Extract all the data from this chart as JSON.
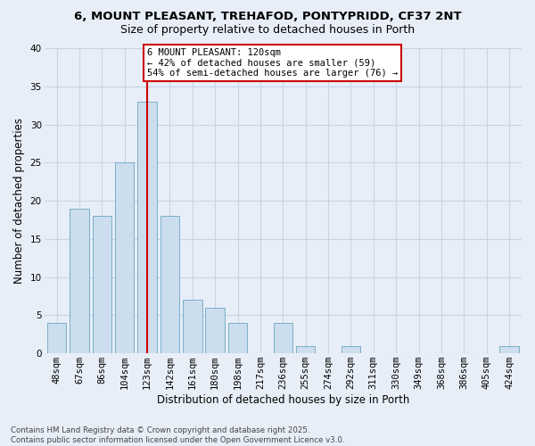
{
  "title1": "6, MOUNT PLEASANT, TREHAFOD, PONTYPRIDD, CF37 2NT",
  "title2": "Size of property relative to detached houses in Porth",
  "xlabel": "Distribution of detached houses by size in Porth",
  "ylabel": "Number of detached properties",
  "categories": [
    "48sqm",
    "67sqm",
    "86sqm",
    "104sqm",
    "123sqm",
    "142sqm",
    "161sqm",
    "180sqm",
    "198sqm",
    "217sqm",
    "236sqm",
    "255sqm",
    "274sqm",
    "292sqm",
    "311sqm",
    "330sqm",
    "349sqm",
    "368sqm",
    "386sqm",
    "405sqm",
    "424sqm"
  ],
  "values": [
    4,
    19,
    18,
    25,
    33,
    18,
    7,
    6,
    4,
    0,
    4,
    1,
    0,
    1,
    0,
    0,
    0,
    0,
    0,
    0,
    1
  ],
  "bar_color": "#ccdded",
  "bar_edge_color": "#7aafc8",
  "grid_color": "#c8d4e4",
  "background_color": "#e8eef8",
  "vline_color": "#cc0000",
  "vline_x_index": 4.0,
  "annotation_text": "6 MOUNT PLEASANT: 120sqm\n← 42% of detached houses are smaller (59)\n54% of semi-detached houses are larger (76) →",
  "annotation_box_color": "#ffffff",
  "annotation_box_edge": "#cc0000",
  "footer": "Contains HM Land Registry data © Crown copyright and database right 2025.\nContains public sector information licensed under the Open Government Licence v3.0.",
  "ylim": [
    0,
    40
  ],
  "yticks": [
    0,
    5,
    10,
    15,
    20,
    25,
    30,
    35,
    40
  ],
  "title1_fontsize": 9.5,
  "title2_fontsize": 9,
  "ylabel_fontsize": 8.5,
  "xlabel_fontsize": 8.5,
  "tick_fontsize": 7.5,
  "annotation_fontsize": 7.5,
  "footer_fontsize": 6.2
}
